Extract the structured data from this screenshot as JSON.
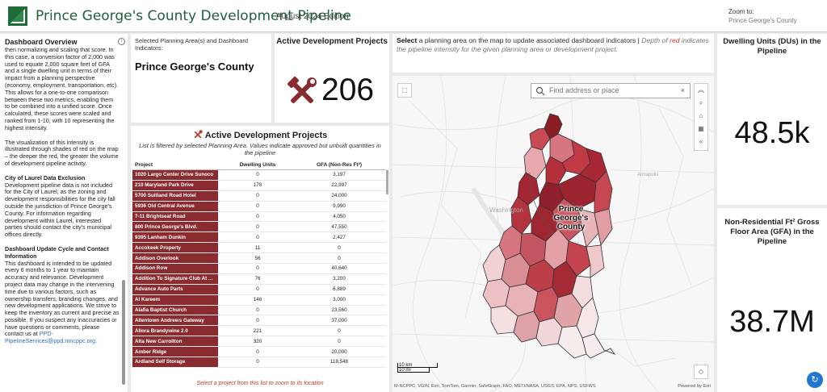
{
  "header": {
    "title": "Prince George's County Development Pipeline",
    "edition": "August 2024 Edition",
    "zoom_label": "Zoom to:",
    "zoom_value": "Prince George's County"
  },
  "overview": {
    "title": "Dashboard Overview",
    "info_icon": "i",
    "p1": "then normalizing and scaling that score. In this case, a conversion factor of 2,000 was used to equate 2,000 square feet of GFA and a single dwelling unit in terms of their impact from a planning perspective (economy, employment, transportation, etc). This allows for a one-to-one comparison between these two metrics, enabling them to be combined into a unified score. Once calculated, these scores were scaled and ranked from 1-10, with 10 representing the highest intensity.",
    "p2": "The visualization of this intensity is illustrated through shades of red on the map – the deeper the red, the greater the volume of development pipeline activity.",
    "laurel_title": "City of Laurel Data Exclusion",
    "laurel_body": "Development pipeline data is not included for the City of Laurel, as the zoning and development responsibilities for the city fall outside the jurisdiction of Prince George's County. For information regarding development within Laurel, interested parties should contact the city's municipal offices directly.",
    "update_title": "Dashboard Update Cycle and Contact Information",
    "update_body": "This dashboard is intended to be updated every 6 months to 1 year to maintain accuracy and relevance. Development project data may change in the intervening time due to various factors, such as ownership transfers, branding changes, and new development applications. We strive to keep the inventory as current and precise as possible. If you suspect any inaccuracies or have questions or comments, please contact us at",
    "email": "PPD-PipelineServices@ppd.mncppc.org."
  },
  "selection": {
    "label": "Selected Planning Area(s) and Dashboard Indicators:",
    "value": "Prince George's County"
  },
  "active_projects": {
    "title": "Active Development Projects",
    "count": "206"
  },
  "project_list": {
    "title": "Active Development Projects",
    "subtitle": "List is filtered by selected Planning Area. Values indicate approved but unbuilt quantities in the pipeline",
    "columns": [
      "Project",
      "Dwelling Units",
      "GFA (Non-Res Ft²)"
    ],
    "rows": [
      [
        "1020 Largo Center Drive Sunoco",
        "0",
        "3,197"
      ],
      [
        "210 Maryland Park Drive",
        "178",
        "22,997"
      ],
      [
        "5700 Suitland Road Hotel",
        "0",
        "24,000"
      ],
      [
        "5936 Old Central Avenue",
        "0",
        "9,990"
      ],
      [
        "7-11 Brightseat Road",
        "0",
        "4,050"
      ],
      [
        "800 Prince George's Blvd.",
        "0",
        "47,550"
      ],
      [
        "9395 Lanham Dunkin",
        "0",
        "2,427"
      ],
      [
        "Accokeek Property",
        "11",
        "0"
      ],
      [
        "Addison Overlook",
        "56",
        "0"
      ],
      [
        "Addison Row",
        "0",
        "40,640"
      ],
      [
        "Addition To Signature Club At ...",
        "76",
        "3,200"
      ],
      [
        "Advance Auto Parts",
        "0",
        "6,889"
      ],
      [
        "Al Kareem",
        "146",
        "3,000"
      ],
      [
        "Alafia Baptist Church",
        "0",
        "23,560"
      ],
      [
        "Allentown Andrews Gateway",
        "0",
        "37,000"
      ],
      [
        "Allora Brandywine 2.0",
        "221",
        "0"
      ],
      [
        "Alta New Carrollton",
        "320",
        "0"
      ],
      [
        "Amber Ridge",
        "0",
        "20,000"
      ],
      [
        "Ardland Self Storage",
        "0",
        "118,548"
      ]
    ],
    "footer": "Select a project from this list to zoom to its location"
  },
  "map_header": {
    "select_word": "Select",
    "text1": " a planning area on the map to update associated dashboard indicators | ",
    "depth_text": "Depth of ",
    "red_word": "red",
    "text2": " indicates the pipeline intensity for the given planning area or development project."
  },
  "map": {
    "search_placeholder": "Find address or place",
    "county_label_1": "Prince",
    "county_label_2": "George's",
    "county_label_3": "County",
    "place_washington": "Washington",
    "place_annapolis": "Annapolis",
    "scale_km": "10 km",
    "scale_mi": "10 mi",
    "attribution": "M-NCPPC, VGIN, Esri, TomTom, Garmin, SafeGraph, FAO, METI/NASA, USGS, EPA, NPS, USFWS",
    "powered_by": "Powered by Esri"
  },
  "dwelling_units": {
    "title": "Dwelling Units (DUs) in the Pipeline",
    "value": "48.5k"
  },
  "gfa": {
    "title": "Non-Residential Ft² Gross Floor Area (GFA) in the Pipeline",
    "value": "38.7M"
  },
  "colors": {
    "accent_red": "#8a2b2f",
    "brand_green": "#1f5f3a"
  }
}
